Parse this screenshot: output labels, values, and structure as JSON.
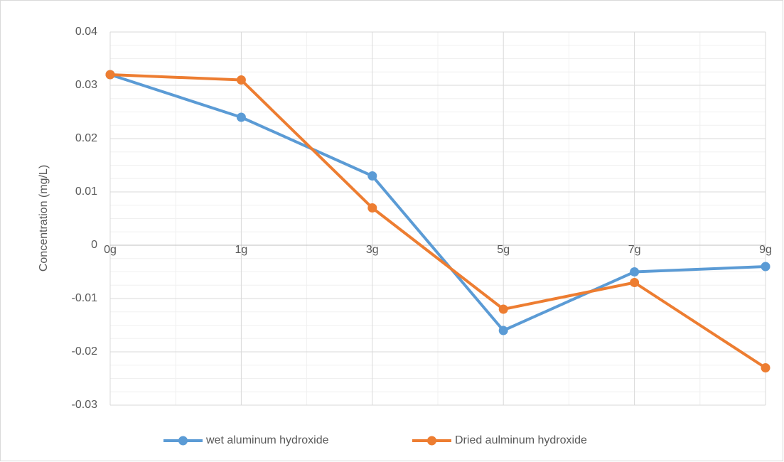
{
  "chart_data": {
    "type": "line",
    "y_label": "Concentration (mg/L)",
    "categories": [
      "0g",
      "1g",
      "3g",
      "5g",
      "7g",
      "9g"
    ],
    "series": [
      {
        "name": "wet aluminum hydroxide",
        "color": "#5b9bd5",
        "values": [
          0.032,
          0.024,
          0.013,
          -0.016,
          -0.005,
          -0.004
        ]
      },
      {
        "name": "Dried aulminum hydroxide",
        "color": "#ed7d31",
        "values": [
          0.032,
          0.031,
          0.007,
          -0.012,
          -0.007,
          -0.023
        ]
      }
    ],
    "ylim": [
      -0.03,
      0.04
    ],
    "yticks": [
      -0.03,
      -0.02,
      -0.01,
      0,
      0.01,
      0.02,
      0.03,
      0.04
    ],
    "grid": true,
    "legend": "bottom"
  }
}
